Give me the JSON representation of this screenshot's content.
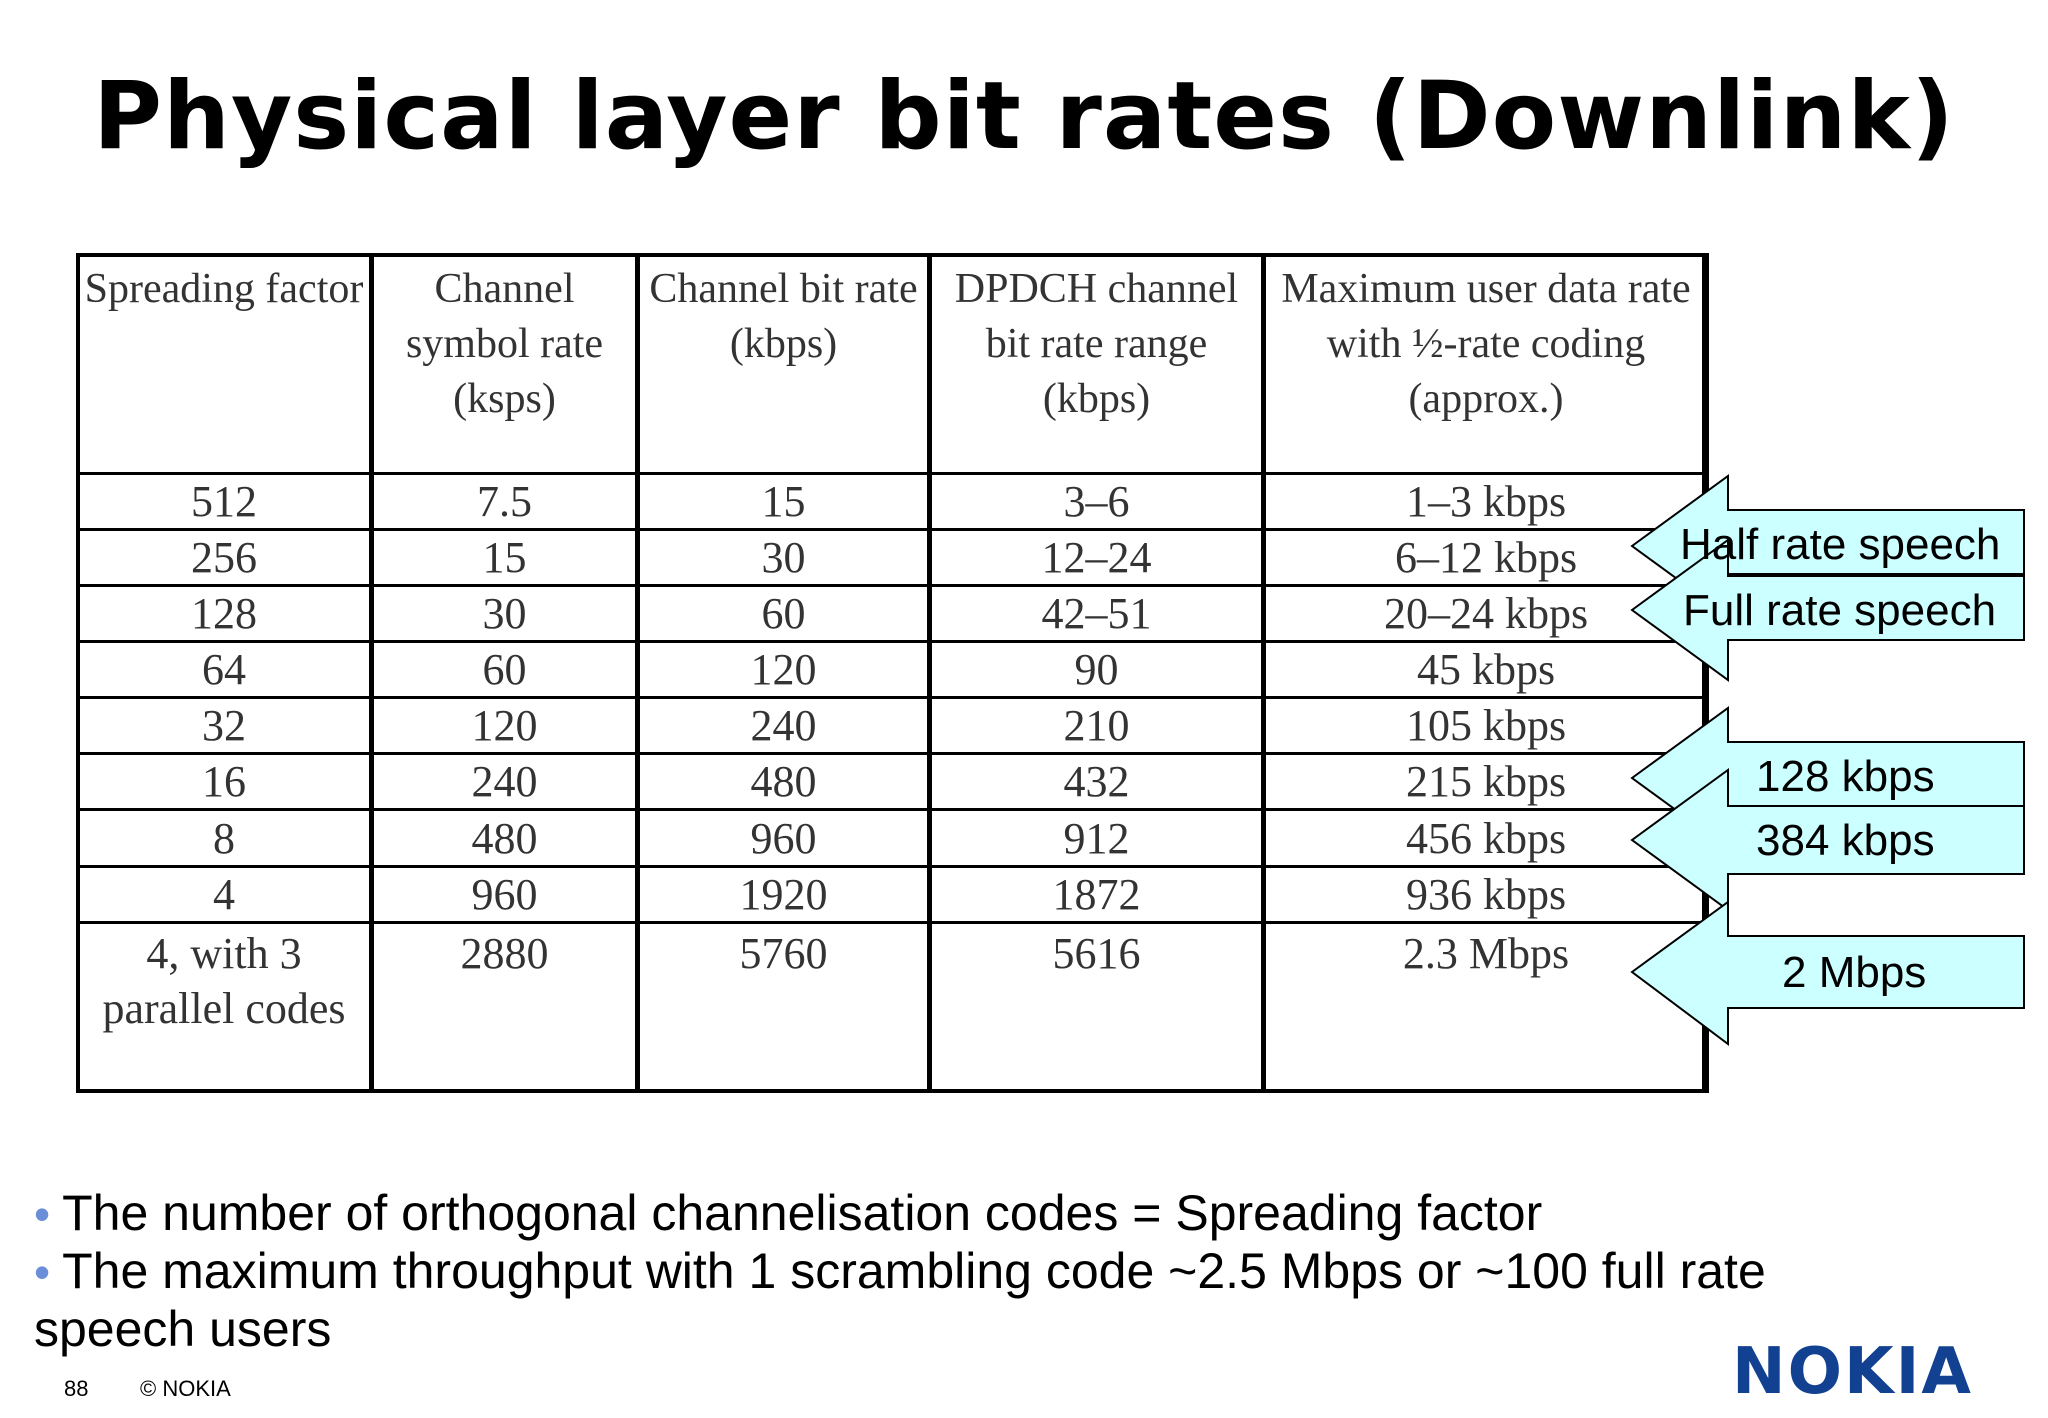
{
  "title": "Physical layer bit rates (Downlink)",
  "table": {
    "headers": [
      "Spreading factor",
      "Channel symbol rate (ksps)",
      "Channel bit rate (kbps)",
      "DPDCH channel bit rate range (kbps)",
      "Maximum user data rate with ½-rate coding (approx.)"
    ],
    "rows": [
      [
        "512",
        "7.5",
        "15",
        "3–6",
        "1–3 kbps"
      ],
      [
        "256",
        "15",
        "30",
        "12–24",
        "6–12 kbps"
      ],
      [
        "128",
        "30",
        "60",
        "42–51",
        "20–24 kbps"
      ],
      [
        "64",
        "60",
        "120",
        "90",
        "45 kbps"
      ],
      [
        "32",
        "120",
        "240",
        "210",
        "105 kbps"
      ],
      [
        "16",
        "240",
        "480",
        "432",
        "215 kbps"
      ],
      [
        "8",
        "480",
        "960",
        "912",
        "456 kbps"
      ],
      [
        "4",
        "960",
        "1920",
        "1872",
        "936 kbps"
      ],
      [
        "4, with 3 parallel codes",
        "2880",
        "5760",
        "5616",
        "2.3 Mbps"
      ]
    ]
  },
  "callouts": {
    "half_rate": "Half rate speech",
    "full_rate": "Full rate speech",
    "kbps128": "128 kbps",
    "kbps384": "384 kbps",
    "mbps2": "2 Mbps",
    "fill_color": "#ccffff"
  },
  "bullets": [
    "The number of orthogonal channelisation codes = Spreading factor",
    "The maximum throughput with 1 scrambling code ~2.5 Mbps  or ~100 full rate speech users"
  ],
  "footer": {
    "page_number": "88",
    "copyright": "© NOKIA",
    "logo": "NOKIA"
  }
}
